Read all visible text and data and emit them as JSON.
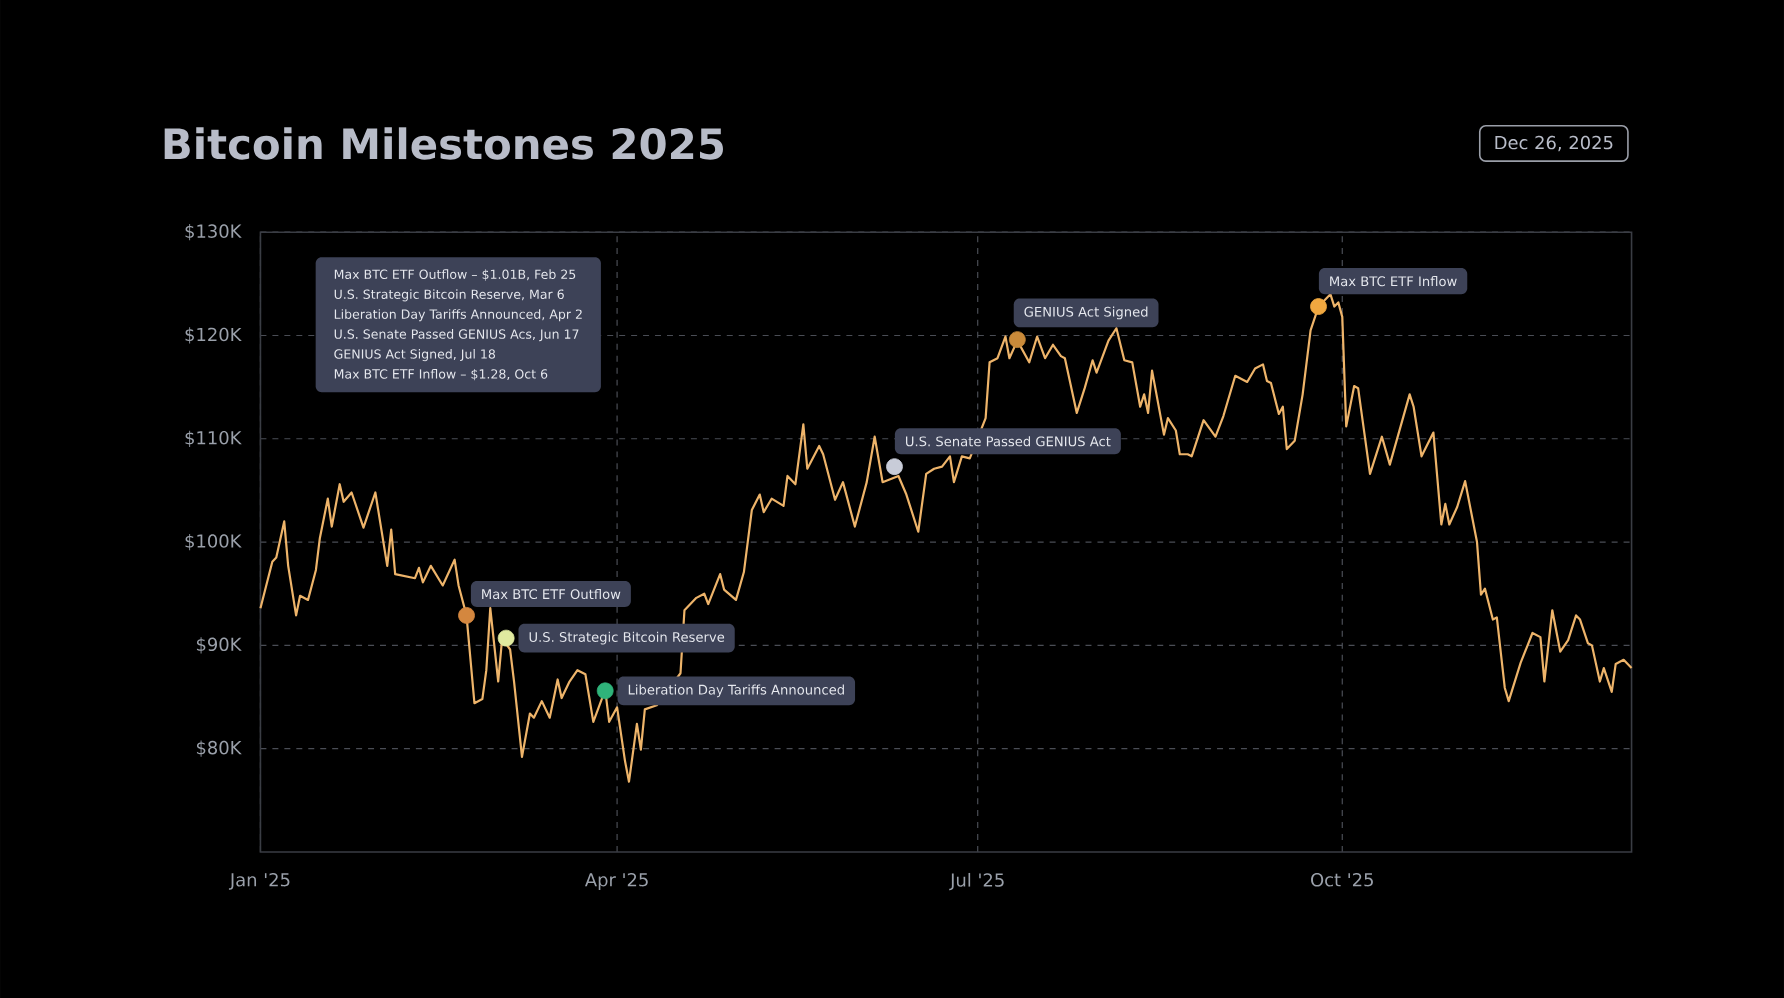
{
  "chart_data": {
    "type": "line",
    "title": "Bitcoin Milestones 2025",
    "xlim": [
      "2025-01-01",
      "2025-12-13"
    ],
    "xticks": [
      {
        "value": "2025-01-01",
        "label": "Jan '25"
      },
      {
        "value": "2025-04-01",
        "label": "Apr '25"
      },
      {
        "value": "2025-07-01",
        "label": "Jul '25"
      },
      {
        "value": "2025-10-01",
        "label": "Oct '25"
      }
    ],
    "ylim": [
      70000,
      130000
    ],
    "yticks": [
      {
        "value": 80000,
        "label": "$80K"
      },
      {
        "value": 90000,
        "label": "$90K"
      },
      {
        "value": 100000,
        "label": "$100K"
      },
      {
        "value": 110000,
        "label": "$110K"
      },
      {
        "value": 120000,
        "label": "$120K"
      },
      {
        "value": 130000,
        "label": "$130K"
      }
    ],
    "grid": true,
    "series": [
      {
        "color": "#eeb46a",
        "x": [
          "2025-01-01",
          "2025-01-04",
          "2025-01-05",
          "2025-01-07",
          "2025-01-08",
          "2025-01-10",
          "2025-01-11",
          "2025-01-13",
          "2025-01-15",
          "2025-01-16",
          "2025-01-18",
          "2025-01-19",
          "2025-01-21",
          "2025-01-22",
          "2025-01-24",
          "2025-01-27",
          "2025-01-30",
          "2025-02-02",
          "2025-02-03",
          "2025-02-04",
          "2025-02-09",
          "2025-02-10",
          "2025-02-11",
          "2025-02-13",
          "2025-02-16",
          "2025-02-19",
          "2025-02-20",
          "2025-02-22",
          "2025-02-24",
          "2025-02-26",
          "2025-02-27",
          "2025-02-28",
          "2025-03-02",
          "2025-03-03",
          "2025-03-05",
          "2025-03-06",
          "2025-03-08",
          "2025-03-10",
          "2025-03-11",
          "2025-03-13",
          "2025-03-15",
          "2025-03-17",
          "2025-03-18",
          "2025-03-20",
          "2025-03-22",
          "2025-03-24",
          "2025-03-26",
          "2025-03-29",
          "2025-03-30",
          "2025-04-01",
          "2025-04-03",
          "2025-04-04",
          "2025-04-06",
          "2025-04-07",
          "2025-04-08",
          "2025-04-11",
          "2025-04-17",
          "2025-04-18",
          "2025-04-21",
          "2025-04-23",
          "2025-04-24",
          "2025-04-27",
          "2025-04-28",
          "2025-05-01",
          "2025-05-03",
          "2025-05-05",
          "2025-05-07",
          "2025-05-08",
          "2025-05-10",
          "2025-05-13",
          "2025-05-14",
          "2025-05-16",
          "2025-05-18",
          "2025-05-19",
          "2025-05-22",
          "2025-05-23",
          "2025-05-26",
          "2025-05-28",
          "2025-05-31",
          "2025-06-03",
          "2025-06-05",
          "2025-06-07",
          "2025-06-11",
          "2025-06-13",
          "2025-06-16",
          "2025-06-18",
          "2025-06-20",
          "2025-06-22",
          "2025-06-24",
          "2025-06-25",
          "2025-06-27",
          "2025-06-29",
          "2025-07-03",
          "2025-07-04",
          "2025-07-06",
          "2025-07-08",
          "2025-07-09",
          "2025-07-11",
          "2025-07-14",
          "2025-07-16",
          "2025-07-18",
          "2025-07-20",
          "2025-07-22",
          "2025-07-23",
          "2025-07-26",
          "2025-07-28",
          "2025-07-30",
          "2025-07-31",
          "2025-08-03",
          "2025-08-05",
          "2025-08-07",
          "2025-08-09",
          "2025-08-11",
          "2025-08-12",
          "2025-08-13",
          "2025-08-14",
          "2025-08-17",
          "2025-08-18",
          "2025-08-20",
          "2025-08-21",
          "2025-08-23",
          "2025-08-24",
          "2025-08-27",
          "2025-08-30",
          "2025-09-01",
          "2025-09-04",
          "2025-09-07",
          "2025-09-09",
          "2025-09-11",
          "2025-09-12",
          "2025-09-13",
          "2025-09-15",
          "2025-09-16",
          "2025-09-17",
          "2025-09-19",
          "2025-09-21",
          "2025-09-23",
          "2025-09-25",
          "2025-09-28",
          "2025-09-29",
          "2025-09-30",
          "2025-10-01",
          "2025-10-02",
          "2025-10-04",
          "2025-10-05",
          "2025-10-08",
          "2025-10-11",
          "2025-10-13",
          "2025-10-18",
          "2025-10-19",
          "2025-10-21",
          "2025-10-24",
          "2025-10-26",
          "2025-10-27",
          "2025-10-28",
          "2025-10-30",
          "2025-11-01",
          "2025-11-04",
          "2025-11-05",
          "2025-11-06",
          "2025-11-08",
          "2025-11-09",
          "2025-11-11",
          "2025-11-12",
          "2025-11-15",
          "2025-11-18",
          "2025-11-20",
          "2025-11-21",
          "2025-11-23",
          "2025-11-25",
          "2025-11-27",
          "2025-11-29",
          "2025-11-30",
          "2025-12-02",
          "2025-12-03",
          "2025-12-05",
          "2025-12-06",
          "2025-12-08",
          "2025-12-09",
          "2025-12-11",
          "2025-12-13"
        ],
        "values": [
          93600,
          98100,
          98500,
          102000,
          97700,
          92900,
          94800,
          94400,
          97300,
          100400,
          104200,
          101500,
          105600,
          103900,
          104800,
          101400,
          104800,
          97700,
          101200,
          96900,
          96500,
          97500,
          96100,
          97700,
          95800,
          98300,
          95800,
          92900,
          84400,
          84800,
          87600,
          93600,
          86500,
          90700,
          89600,
          86500,
          79200,
          83400,
          83000,
          84600,
          83000,
          86700,
          84900,
          86500,
          87600,
          87200,
          82600,
          85700,
          82600,
          84000,
          78800,
          76800,
          82400,
          79900,
          83800,
          84200,
          87300,
          93400,
          94600,
          95000,
          94000,
          96900,
          95400,
          94400,
          97100,
          103100,
          104600,
          102900,
          104200,
          103500,
          106400,
          105600,
          111400,
          107100,
          109300,
          108500,
          104100,
          105800,
          101500,
          105800,
          110200,
          105800,
          106400,
          104600,
          101000,
          106600,
          107100,
          107300,
          108300,
          105800,
          108300,
          108100,
          112000,
          117400,
          117800,
          119900,
          117800,
          119500,
          117400,
          119900,
          117800,
          119100,
          118000,
          117800,
          112500,
          114900,
          117600,
          116400,
          119500,
          120700,
          117600,
          117400,
          113100,
          114300,
          112500,
          116600,
          110400,
          112000,
          110800,
          108500,
          108500,
          108300,
          111800,
          110200,
          112200,
          116100,
          115500,
          116800,
          117200,
          115600,
          115400,
          112400,
          113100,
          109000,
          109800,
          114300,
          120500,
          122800,
          124000,
          122800,
          123200,
          121800,
          111200,
          115100,
          114900,
          106600,
          110200,
          107500,
          114300,
          113100,
          108300,
          110600,
          101700,
          103700,
          101700,
          103400,
          105900,
          100000,
          94900,
          95500,
          92500,
          92700,
          85900,
          84600,
          88300,
          91200,
          90800,
          86500,
          93400,
          89400,
          90500,
          92900,
          92500,
          90200,
          90000,
          86500,
          87800,
          85500,
          88200,
          88600,
          87800
        ]
      },
      {
        "type": "scatter",
        "marker": "circle",
        "x": [
          "2025-02-22",
          "2025-03-04",
          "2025-03-29",
          "2025-06-10",
          "2025-07-11",
          "2025-09-25"
        ],
        "values": [
          92900,
          90700,
          85600,
          107300,
          119600,
          122800
        ],
        "colors": [
          "#d4873f",
          "#e0eaa0",
          "#2fb37a",
          "#c8ccd8",
          "#c98a3a",
          "#f0a840"
        ]
      }
    ],
    "annotations": [
      "Dec 26, 2025",
      "Max BTC ETF Outflow – $1.01B, Feb 25",
      "U.S. Strategic Bitcoin Reserve, Mar 6",
      "Liberation Day Tariffs Announced, Apr 2",
      "U.S. Senate Passed GENIUS Acs, Jun 17",
      "GENIUS Act Signed, Jul 18",
      "Max BTC ETF Inflow – $1.28, Oct 6",
      {
        "text": "Max BTC ETF Outflow",
        "x": "2025-02-22",
        "y": 92900
      },
      {
        "text": "U.S. Strategic Bitcoin Reserve",
        "x": "2025-03-04",
        "y": 90700
      },
      {
        "text": "Liberation Day Tariffs Announced",
        "x": "2025-03-29",
        "y": 85600
      },
      {
        "text": "U.S. Senate Passed GENIUS Act",
        "x": "2025-06-10",
        "y": 107300
      },
      {
        "text": "GENIUS Act Signed",
        "x": "2025-07-11",
        "y": 119600
      },
      {
        "text": "Max BTC ETF Inflow",
        "x": "2025-09-25",
        "y": 122800
      }
    ]
  }
}
